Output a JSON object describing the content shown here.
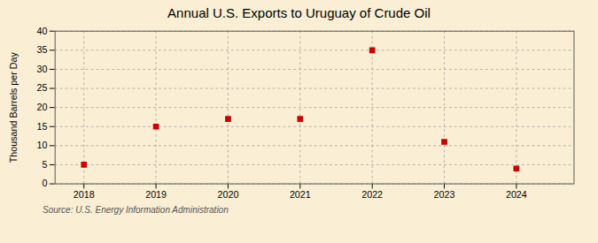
{
  "chart_data": {
    "type": "scatter",
    "title": "Annual U.S. Exports to Uruguay of Crude Oil",
    "ylabel": "Thousand Barrels per Day",
    "source": "Source: U.S. Energy Information Administration",
    "x": [
      2018,
      2019,
      2020,
      2021,
      2022,
      2023,
      2024
    ],
    "values": [
      5.0,
      15.0,
      17.0,
      17.0,
      35.0,
      11.0,
      4.0
    ],
    "color": "#cc0000",
    "marker": "square",
    "xlim": [
      2017.6,
      2024.8
    ],
    "ylim": [
      0,
      40
    ],
    "xticks": [
      2018,
      2019,
      2020,
      2021,
      2022,
      2023,
      2024
    ],
    "yticks": [
      0,
      5,
      10,
      15,
      20,
      25,
      30,
      35,
      40
    ],
    "grid": true
  }
}
